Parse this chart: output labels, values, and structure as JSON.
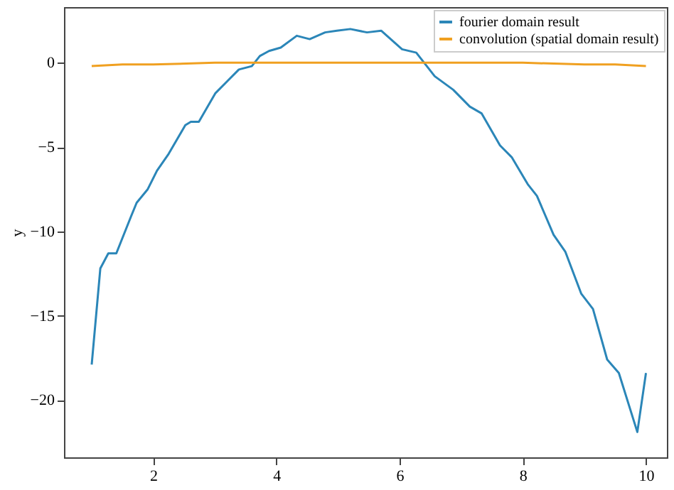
{
  "chart_data": {
    "type": "line",
    "ylabel": "y",
    "xlim": [
      0.55,
      10.34
    ],
    "ylim": [
      -23.4,
      3.3
    ],
    "xticks": [
      2,
      4,
      6,
      8,
      10
    ],
    "yticks": [
      -20,
      -15,
      -10,
      -5,
      0
    ],
    "grid": false,
    "legend": "top right",
    "line_style": "solid",
    "marker": "none",
    "series": [
      {
        "name": "fourier domain result",
        "color": "#2b86b8",
        "x": [
          1.0,
          1.14,
          1.27,
          1.4,
          1.64,
          1.73,
          1.91,
          2.06,
          2.25,
          2.52,
          2.61,
          2.74,
          3.01,
          3.2,
          3.39,
          3.6,
          3.73,
          3.88,
          4.07,
          4.33,
          4.54,
          4.79,
          4.98,
          5.2,
          5.47,
          5.7,
          6.04,
          6.27,
          6.57,
          6.87,
          7.14,
          7.33,
          7.63,
          7.82,
          8.08,
          8.23,
          8.5,
          8.69,
          8.95,
          9.14,
          9.37,
          9.56,
          9.86,
          10.0
        ],
        "values": [
          -17.9,
          -12.2,
          -11.3,
          -11.3,
          -9.1,
          -8.3,
          -7.5,
          -6.4,
          -5.4,
          -3.7,
          -3.5,
          -3.5,
          -1.8,
          -1.1,
          -0.4,
          -0.2,
          0.4,
          0.7,
          0.9,
          1.6,
          1.4,
          1.8,
          1.9,
          2.0,
          1.8,
          1.9,
          0.8,
          0.6,
          -0.8,
          -1.6,
          -2.6,
          -3.0,
          -4.9,
          -5.6,
          -7.2,
          -7.9,
          -10.2,
          -11.2,
          -13.7,
          -14.6,
          -17.6,
          -18.4,
          -21.9,
          -18.4
        ]
      },
      {
        "name": "convolution (spatial domain result)",
        "color": "#f0a020",
        "x": [
          1.0,
          1.5,
          2.0,
          3.0,
          4.0,
          5.0,
          6.0,
          7.0,
          8.0,
          9.0,
          9.5,
          10.0
        ],
        "values": [
          -0.2,
          -0.1,
          -0.1,
          0.0,
          0.0,
          0.0,
          0.0,
          0.0,
          0.0,
          -0.1,
          -0.1,
          -0.2
        ]
      }
    ]
  }
}
